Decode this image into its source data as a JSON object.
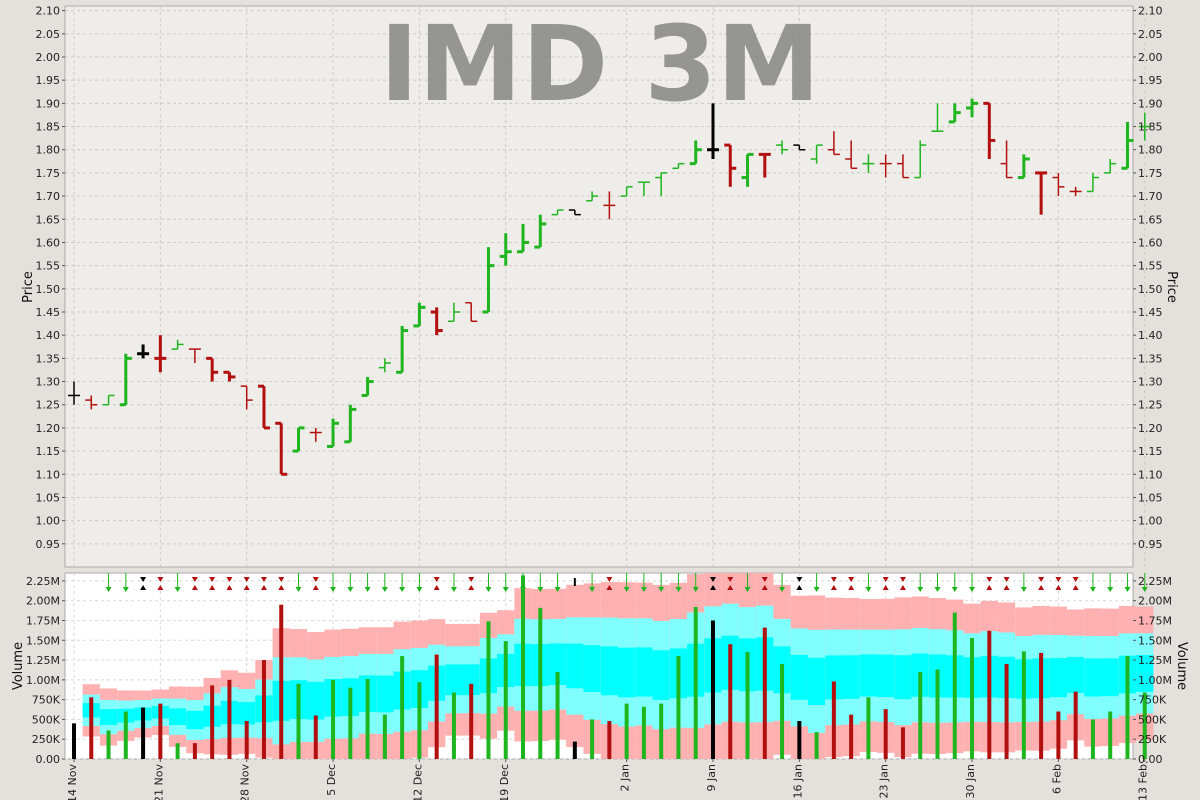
{
  "title": "IMD 3M",
  "chart_data": {
    "type": "ohlc_volume",
    "title": "IMD 3M",
    "price_panel": {
      "ylabel": "Price",
      "ylim": [
        0.9,
        2.11
      ],
      "yticks": [
        "0.95",
        "1.00",
        "1.05",
        "1.10",
        "1.15",
        "1.20",
        "1.25",
        "1.30",
        "1.35",
        "1.40",
        "1.45",
        "1.50",
        "1.55",
        "1.60",
        "1.65",
        "1.70",
        "1.75",
        "1.80",
        "1.85",
        "1.90",
        "1.95",
        "2.00",
        "2.05",
        "2.10"
      ],
      "grid": true
    },
    "volume_panel": {
      "ylabel": "Volume",
      "ylim": [
        0,
        2.35
      ],
      "yticks": [
        "0.00",
        "250K",
        "500K",
        "750K",
        "1.00M",
        "1.25M",
        "1.50M",
        "1.75M",
        "2.00M",
        "2.25M"
      ],
      "grid": true
    },
    "x_tick_labels": [
      {
        "label": "14 Nov",
        "bar": 0
      },
      {
        "label": "21 Nov",
        "bar": 5
      },
      {
        "label": "28 Nov",
        "bar": 10
      },
      {
        "label": "5 Dec",
        "bar": 15
      },
      {
        "label": "12 Dec",
        "bar": 20
      },
      {
        "label": "19 Dec",
        "bar": 25
      },
      {
        "label": "2 Jan",
        "bar": 32
      },
      {
        "label": "9 Jan",
        "bar": 37
      },
      {
        "label": "16 Jan",
        "bar": 42
      },
      {
        "label": "23 Jan",
        "bar": 47
      },
      {
        "label": "30 Jan",
        "bar": 52
      },
      {
        "label": "6 Feb",
        "bar": 57
      },
      {
        "label": "13 Feb",
        "bar": 62
      }
    ],
    "colors": {
      "up": "#1fb51f",
      "down": "#b20f0f",
      "neutral": "#000000",
      "band_outer": "#ffb0b0",
      "band_mid": "#80ffff",
      "band_inner": "#00ffff",
      "plot_bg": "#efede9",
      "vol_bg": "#ffffff"
    },
    "bars": [
      {
        "o": 1.27,
        "h": 1.3,
        "l": 1.25,
        "c": 1.27,
        "v": 0.45,
        "d": "n",
        "w": 1
      },
      {
        "o": 1.26,
        "h": 1.27,
        "l": 1.24,
        "c": 1.25,
        "v": 0.78,
        "d": "d",
        "w": 1
      },
      {
        "o": 1.25,
        "h": 1.27,
        "l": 1.25,
        "c": 1.27,
        "v": 0.36,
        "d": "u",
        "w": 1
      },
      {
        "o": 1.25,
        "h": 1.36,
        "l": 1.25,
        "c": 1.35,
        "v": 0.6,
        "d": "u",
        "w": 2
      },
      {
        "o": 1.36,
        "h": 1.38,
        "l": 1.35,
        "c": 1.36,
        "v": 0.65,
        "d": "n",
        "w": 2
      },
      {
        "o": 1.35,
        "h": 1.4,
        "l": 1.32,
        "c": 1.35,
        "v": 0.7,
        "d": "d",
        "w": 2
      },
      {
        "o": 1.37,
        "h": 1.39,
        "l": 1.37,
        "c": 1.38,
        "v": 0.2,
        "d": "u",
        "w": 1
      },
      {
        "o": 1.37,
        "h": 1.37,
        "l": 1.34,
        "c": 1.37,
        "v": 0.2,
        "d": "d",
        "w": 1
      },
      {
        "o": 1.35,
        "h": 1.35,
        "l": 1.3,
        "c": 1.32,
        "v": 0.93,
        "d": "d",
        "w": 2
      },
      {
        "o": 1.32,
        "h": 1.32,
        "l": 1.3,
        "c": 1.31,
        "v": 1.0,
        "d": "d",
        "w": 2
      },
      {
        "o": 1.29,
        "h": 1.29,
        "l": 1.24,
        "c": 1.26,
        "v": 0.48,
        "d": "d",
        "w": 1
      },
      {
        "o": 1.29,
        "h": 1.29,
        "l": 1.2,
        "c": 1.2,
        "v": 1.25,
        "d": "d",
        "w": 2
      },
      {
        "o": 1.21,
        "h": 1.21,
        "l": 1.1,
        "c": 1.1,
        "v": 1.95,
        "d": "d",
        "w": 2
      },
      {
        "o": 1.15,
        "h": 1.2,
        "l": 1.15,
        "c": 1.2,
        "v": 0.95,
        "d": "u",
        "w": 2
      },
      {
        "o": 1.19,
        "h": 1.2,
        "l": 1.17,
        "c": 1.19,
        "v": 0.55,
        "d": "d",
        "w": 1
      },
      {
        "o": 1.16,
        "h": 1.22,
        "l": 1.16,
        "c": 1.21,
        "v": 1.0,
        "d": "u",
        "w": 2
      },
      {
        "o": 1.17,
        "h": 1.25,
        "l": 1.17,
        "c": 1.24,
        "v": 0.9,
        "d": "u",
        "w": 2
      },
      {
        "o": 1.27,
        "h": 1.31,
        "l": 1.27,
        "c": 1.3,
        "v": 1.01,
        "d": "u",
        "w": 2
      },
      {
        "o": 1.33,
        "h": 1.35,
        "l": 1.32,
        "c": 1.34,
        "v": 0.56,
        "d": "u",
        "w": 1
      },
      {
        "o": 1.32,
        "h": 1.42,
        "l": 1.32,
        "c": 1.41,
        "v": 1.3,
        "d": "u",
        "w": 2
      },
      {
        "o": 1.42,
        "h": 1.47,
        "l": 1.42,
        "c": 1.46,
        "v": 0.97,
        "d": "u",
        "w": 2
      },
      {
        "o": 1.45,
        "h": 1.46,
        "l": 1.4,
        "c": 1.41,
        "v": 1.32,
        "d": "d",
        "w": 2
      },
      {
        "o": 1.43,
        "h": 1.47,
        "l": 1.43,
        "c": 1.45,
        "v": 0.84,
        "d": "u",
        "w": 1
      },
      {
        "o": 1.47,
        "h": 1.47,
        "l": 1.43,
        "c": 1.43,
        "v": 0.95,
        "d": "d",
        "w": 1
      },
      {
        "o": 1.45,
        "h": 1.59,
        "l": 1.45,
        "c": 1.55,
        "v": 1.74,
        "d": "u",
        "w": 2
      },
      {
        "o": 1.57,
        "h": 1.62,
        "l": 1.55,
        "c": 1.58,
        "v": 1.49,
        "d": "u",
        "w": 2
      },
      {
        "o": 1.58,
        "h": 1.64,
        "l": 1.58,
        "c": 1.6,
        "v": 2.32,
        "d": "u",
        "w": 2
      },
      {
        "o": 1.59,
        "h": 1.66,
        "l": 1.59,
        "c": 1.64,
        "v": 1.91,
        "d": "u",
        "w": 2
      },
      {
        "o": 1.66,
        "h": 1.67,
        "l": 1.66,
        "c": 1.67,
        "v": 1.1,
        "d": "u",
        "w": 1
      },
      {
        "o": 1.67,
        "h": 1.67,
        "l": 1.66,
        "c": 1.66,
        "v": 0.22,
        "d": "n",
        "w": 1
      },
      {
        "o": 1.69,
        "h": 1.71,
        "l": 1.69,
        "c": 1.7,
        "v": 0.5,
        "d": "u",
        "w": 1
      },
      {
        "o": 1.68,
        "h": 1.71,
        "l": 1.65,
        "c": 1.68,
        "v": 0.48,
        "d": "d",
        "w": 1
      },
      {
        "o": 1.7,
        "h": 1.72,
        "l": 1.7,
        "c": 1.72,
        "v": 0.7,
        "d": "u",
        "w": 1
      },
      {
        "o": 1.73,
        "h": 1.73,
        "l": 1.7,
        "c": 1.73,
        "v": 0.66,
        "d": "u",
        "w": 1
      },
      {
        "o": 1.74,
        "h": 1.75,
        "l": 1.7,
        "c": 1.75,
        "v": 0.7,
        "d": "u",
        "w": 1
      },
      {
        "o": 1.76,
        "h": 1.77,
        "l": 1.76,
        "c": 1.77,
        "v": 1.3,
        "d": "u",
        "w": 1
      },
      {
        "o": 1.77,
        "h": 1.82,
        "l": 1.77,
        "c": 1.8,
        "v": 1.92,
        "d": "u",
        "w": 2
      },
      {
        "o": 1.8,
        "h": 1.9,
        "l": 1.78,
        "c": 1.8,
        "v": 1.75,
        "d": "n",
        "w": 2
      },
      {
        "o": 1.81,
        "h": 1.81,
        "l": 1.72,
        "c": 1.76,
        "v": 1.45,
        "d": "d",
        "w": 2
      },
      {
        "o": 1.74,
        "h": 1.79,
        "l": 1.72,
        "c": 1.79,
        "v": 1.35,
        "d": "u",
        "w": 2
      },
      {
        "o": 1.79,
        "h": 1.79,
        "l": 1.74,
        "c": 1.79,
        "v": 1.66,
        "d": "d",
        "w": 2
      },
      {
        "o": 1.81,
        "h": 1.82,
        "l": 1.79,
        "c": 1.8,
        "v": 1.2,
        "d": "u",
        "w": 1
      },
      {
        "o": 1.81,
        "h": 1.81,
        "l": 1.8,
        "c": 1.8,
        "v": 0.48,
        "d": "n",
        "w": 1
      },
      {
        "o": 1.78,
        "h": 1.81,
        "l": 1.77,
        "c": 1.81,
        "v": 0.34,
        "d": "u",
        "w": 1
      },
      {
        "o": 1.8,
        "h": 1.84,
        "l": 1.79,
        "c": 1.79,
        "v": 0.98,
        "d": "d",
        "w": 1
      },
      {
        "o": 1.78,
        "h": 1.82,
        "l": 1.76,
        "c": 1.76,
        "v": 0.56,
        "d": "d",
        "w": 1
      },
      {
        "o": 1.77,
        "h": 1.79,
        "l": 1.75,
        "c": 1.77,
        "v": 0.78,
        "d": "u",
        "w": 1
      },
      {
        "o": 1.77,
        "h": 1.79,
        "l": 1.74,
        "c": 1.77,
        "v": 0.63,
        "d": "d",
        "w": 1
      },
      {
        "o": 1.77,
        "h": 1.79,
        "l": 1.74,
        "c": 1.74,
        "v": 0.4,
        "d": "d",
        "w": 1
      },
      {
        "o": 1.74,
        "h": 1.82,
        "l": 1.74,
        "c": 1.81,
        "v": 1.1,
        "d": "u",
        "w": 1
      },
      {
        "o": 1.84,
        "h": 1.9,
        "l": 1.84,
        "c": 1.84,
        "v": 1.13,
        "d": "u",
        "w": 1
      },
      {
        "o": 1.86,
        "h": 1.9,
        "l": 1.86,
        "c": 1.88,
        "v": 1.85,
        "d": "u",
        "w": 2
      },
      {
        "o": 1.89,
        "h": 1.91,
        "l": 1.87,
        "c": 1.9,
        "v": 1.53,
        "d": "u",
        "w": 2
      },
      {
        "o": 1.9,
        "h": 1.9,
        "l": 1.78,
        "c": 1.82,
        "v": 1.62,
        "d": "d",
        "w": 2
      },
      {
        "o": 1.77,
        "h": 1.82,
        "l": 1.74,
        "c": 1.74,
        "v": 1.2,
        "d": "d",
        "w": 1
      },
      {
        "o": 1.74,
        "h": 1.79,
        "l": 1.74,
        "c": 1.78,
        "v": 1.36,
        "d": "u",
        "w": 2
      },
      {
        "o": 1.75,
        "h": 1.75,
        "l": 1.66,
        "c": 1.75,
        "v": 1.34,
        "d": "d",
        "w": 2
      },
      {
        "o": 1.74,
        "h": 1.75,
        "l": 1.7,
        "c": 1.72,
        "v": 0.6,
        "d": "d",
        "w": 1
      },
      {
        "o": 1.71,
        "h": 1.72,
        "l": 1.7,
        "c": 1.71,
        "v": 0.85,
        "d": "d",
        "w": 1
      },
      {
        "o": 1.71,
        "h": 1.75,
        "l": 1.71,
        "c": 1.74,
        "v": 0.5,
        "d": "u",
        "w": 1
      },
      {
        "o": 1.75,
        "h": 1.78,
        "l": 1.75,
        "c": 1.77,
        "v": 0.6,
        "d": "u",
        "w": 1
      },
      {
        "o": 1.76,
        "h": 1.86,
        "l": 1.76,
        "c": 1.82,
        "v": 1.3,
        "d": "u",
        "w": 2
      },
      {
        "o": 1.85,
        "h": 1.88,
        "l": 1.82,
        "c": 1.85,
        "v": 0.84,
        "d": "u",
        "w": 1
      }
    ]
  }
}
